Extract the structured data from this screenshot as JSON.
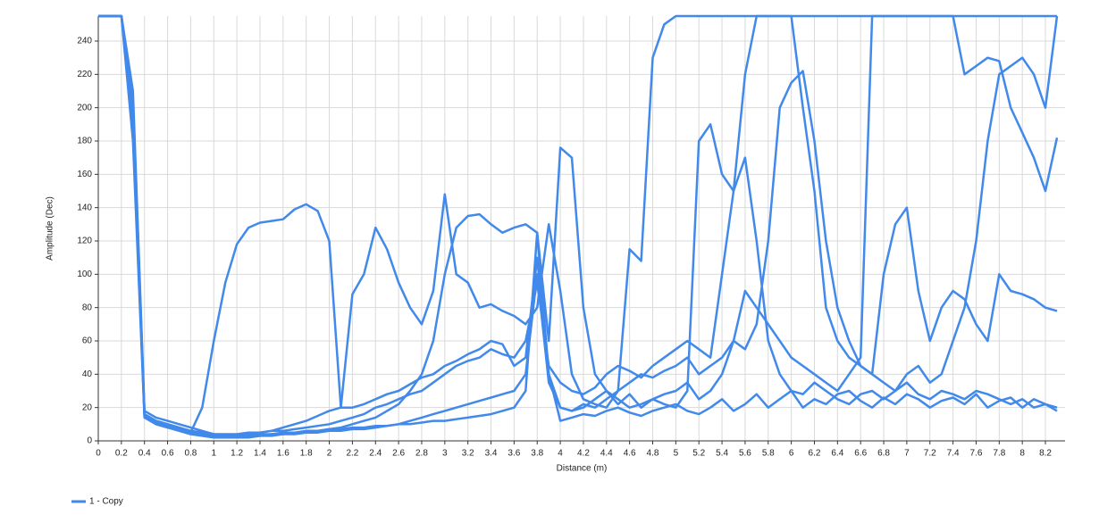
{
  "chart_data": {
    "type": "line",
    "x_label": "Distance (m)",
    "y_label": "Amplitude (Dec)",
    "x": [
      0,
      0.1,
      0.2,
      0.3,
      0.4,
      0.5,
      0.6,
      0.7,
      0.8,
      0.9,
      1,
      1.1,
      1.2,
      1.3,
      1.4,
      1.5,
      1.6,
      1.7,
      1.8,
      1.9,
      2,
      2.1,
      2.2,
      2.3,
      2.4,
      2.5,
      2.6,
      2.7,
      2.8,
      2.9,
      3,
      3.1,
      3.2,
      3.3,
      3.4,
      3.5,
      3.6,
      3.7,
      3.8,
      3.9,
      4,
      4.1,
      4.2,
      4.3,
      4.4,
      4.5,
      4.6,
      4.7,
      4.8,
      4.9,
      5,
      5.1,
      5.2,
      5.3,
      5.4,
      5.5,
      5.6,
      5.7,
      5.8,
      5.9,
      6,
      6.1,
      6.2,
      6.3,
      6.4,
      6.5,
      6.6,
      6.7,
      6.8,
      6.9,
      7,
      7.1,
      7.2,
      7.3,
      7.4,
      7.5,
      7.6,
      7.7,
      7.8,
      7.9,
      8,
      8.1,
      8.2,
      8.3
    ],
    "series": [
      {
        "name": "1 - Copy",
        "color": "#4189ea",
        "values": [
          [
            255,
            255,
            255,
            200,
            16,
            12,
            10,
            8,
            5,
            20,
            60,
            95,
            118,
            128,
            131,
            132,
            133,
            139,
            142,
            138,
            120,
            20,
            20,
            22,
            25,
            28,
            30,
            34,
            38,
            40,
            45,
            48,
            52,
            55,
            60,
            58,
            45,
            50,
            110,
            40,
            20,
            18,
            20,
            25,
            30,
            22,
            28,
            20,
            25,
            22,
            20,
            30,
            180,
            190,
            160,
            150,
            170,
            120,
            60,
            40,
            30,
            28,
            35,
            30,
            25,
            22,
            28,
            30,
            25,
            30,
            35,
            28,
            25,
            30,
            28,
            25,
            30,
            28,
            25,
            22,
            25,
            20,
            22,
            20
          ],
          [
            255,
            255,
            255,
            210,
            18,
            14,
            12,
            10,
            8,
            6,
            4,
            3,
            3,
            4,
            5,
            6,
            8,
            10,
            12,
            15,
            18,
            20,
            88,
            100,
            128,
            115,
            95,
            80,
            70,
            90,
            148,
            100,
            95,
            80,
            82,
            78,
            75,
            70,
            80,
            130,
            90,
            40,
            25,
            22,
            20,
            30,
            115,
            108,
            230,
            250,
            255,
            255,
            255,
            255,
            255,
            255,
            255,
            255,
            255,
            255,
            255,
            255,
            255,
            255,
            255,
            255,
            255,
            255,
            255,
            255,
            255,
            255,
            255,
            255,
            255,
            255,
            255,
            255,
            255,
            255,
            255,
            255,
            255,
            255
          ],
          [
            255,
            255,
            255,
            190,
            15,
            10,
            8,
            6,
            4,
            3,
            2,
            2,
            2,
            3,
            3,
            4,
            4,
            5,
            5,
            6,
            7,
            8,
            10,
            12,
            14,
            18,
            22,
            30,
            40,
            60,
            100,
            128,
            135,
            136,
            130,
            125,
            128,
            130,
            125,
            60,
            176,
            170,
            80,
            40,
            30,
            25,
            20,
            22,
            25,
            28,
            30,
            35,
            25,
            30,
            40,
            60,
            90,
            80,
            70,
            60,
            50,
            45,
            40,
            35,
            30,
            40,
            50,
            255,
            255,
            255,
            255,
            255,
            255,
            255,
            255,
            220,
            225,
            230,
            228,
            200,
            185,
            170,
            150,
            182
          ],
          [
            255,
            255,
            255,
            180,
            14,
            10,
            8,
            7,
            6,
            5,
            4,
            3,
            3,
            3,
            4,
            4,
            5,
            5,
            6,
            6,
            7,
            7,
            8,
            8,
            9,
            9,
            10,
            10,
            11,
            12,
            12,
            13,
            14,
            15,
            16,
            18,
            20,
            30,
            125,
            40,
            12,
            14,
            16,
            15,
            18,
            20,
            17,
            15,
            18,
            20,
            22,
            18,
            16,
            20,
            25,
            18,
            22,
            28,
            20,
            25,
            30,
            20,
            25,
            22,
            28,
            30,
            24,
            20,
            26,
            22,
            28,
            25,
            20,
            24,
            26,
            22,
            28,
            20,
            24,
            26,
            20,
            25,
            22,
            18
          ],
          [
            255,
            255,
            255,
            205,
            16,
            12,
            10,
            8,
            6,
            5,
            4,
            4,
            4,
            5,
            5,
            6,
            6,
            7,
            8,
            9,
            10,
            12,
            14,
            16,
            20,
            22,
            25,
            28,
            30,
            35,
            40,
            45,
            48,
            50,
            55,
            52,
            50,
            60,
            95,
            45,
            35,
            30,
            28,
            32,
            40,
            45,
            42,
            38,
            45,
            50,
            55,
            60,
            55,
            50,
            100,
            150,
            220,
            255,
            255,
            255,
            255,
            200,
            150,
            80,
            60,
            50,
            45,
            40,
            100,
            130,
            140,
            90,
            60,
            80,
            90,
            85,
            70,
            60,
            100,
            90,
            88,
            85,
            80,
            78
          ],
          [
            255,
            255,
            255,
            195,
            15,
            11,
            9,
            7,
            5,
            4,
            3,
            3,
            2,
            2,
            3,
            3,
            4,
            4,
            5,
            5,
            6,
            6,
            7,
            7,
            8,
            9,
            10,
            12,
            14,
            16,
            18,
            20,
            22,
            24,
            26,
            28,
            30,
            40,
            100,
            35,
            20,
            18,
            22,
            20,
            25,
            30,
            35,
            40,
            38,
            42,
            45,
            50,
            40,
            45,
            50,
            60,
            55,
            70,
            120,
            200,
            215,
            222,
            180,
            120,
            80,
            60,
            45,
            40,
            35,
            30,
            40,
            45,
            35,
            40,
            60,
            80,
            120,
            180,
            220,
            225,
            230,
            220,
            200,
            255
          ]
        ]
      }
    ],
    "xlim": [
      0,
      8.37
    ],
    "xticks": [
      0,
      0.2,
      0.4,
      0.6,
      0.8,
      1,
      1.2,
      1.4,
      1.6,
      1.8,
      2,
      2.2,
      2.4,
      2.6,
      2.8,
      3,
      3.2,
      3.4,
      3.6,
      3.8,
      4,
      4.2,
      4.4,
      4.6,
      4.8,
      5,
      5.2,
      5.4,
      5.6,
      5.8,
      6,
      6.2,
      6.4,
      6.6,
      6.8,
      7,
      7.2,
      7.4,
      7.6,
      7.8,
      8,
      8.2
    ],
    "ylim": [
      0,
      255
    ],
    "yticks": [
      0,
      20,
      40,
      60,
      80,
      100,
      120,
      140,
      160,
      180,
      200,
      220,
      240
    ],
    "grid": true
  }
}
